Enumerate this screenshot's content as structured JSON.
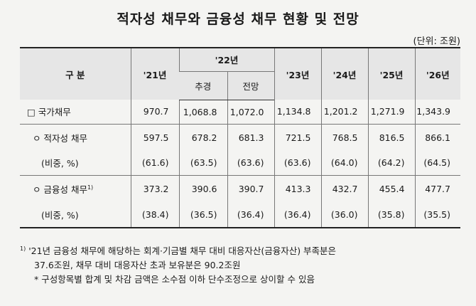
{
  "title": "적자성 채무와 금융성 채무 현황 및 전망",
  "unit": "(단위: 조원)",
  "header": {
    "category": "구 분",
    "y21": "'21년",
    "y22": "'22년",
    "y22_est": "추경",
    "y22_proj": "전망",
    "y23": "'23년",
    "y24": "'24년",
    "y25": "'25년",
    "y26": "'26년"
  },
  "rows": [
    {
      "label": "□ 국가채무",
      "values": [
        "970.7",
        "1,068.8",
        "1,072.0",
        "1,134.8",
        "1,201.2",
        "1,271.9",
        "1,343.9"
      ]
    },
    {
      "label": "ㅇ 적자성 채무",
      "values": [
        "597.5",
        "678.2",
        "681.3",
        "721.5",
        "768.5",
        "816.5",
        "866.1"
      ]
    },
    {
      "label": "(비중, %)",
      "values": [
        "(61.6)",
        "(63.5)",
        "(63.6)",
        "(63.6)",
        "(64.0)",
        "(64.2)",
        "(64.5)"
      ]
    },
    {
      "label": "ㅇ 금융성 채무",
      "sup": "1)",
      "values": [
        "373.2",
        "390.6",
        "390.7",
        "413.3",
        "432.7",
        "455.4",
        "477.7"
      ]
    },
    {
      "label": "(비중, %)",
      "values": [
        "(38.4)",
        "(36.5)",
        "(36.4)",
        "(36.4)",
        "(36.0)",
        "(35.8)",
        "(35.5)"
      ]
    }
  ],
  "notes": {
    "n1_marker": "1)",
    "n1_line1": "'21년 금융성 채무에 해당하는 회계·기금별 채무 대비 대응자산(금융자산) 부족분은",
    "n1_line2": "37.6조원, 채무 대비 대응자산 초과 보유분은 90.2조원",
    "n2": "* 구성항목별 합계 및 차감 금액은 소수점 이하 단수조정으로 상이할 수 있음"
  }
}
